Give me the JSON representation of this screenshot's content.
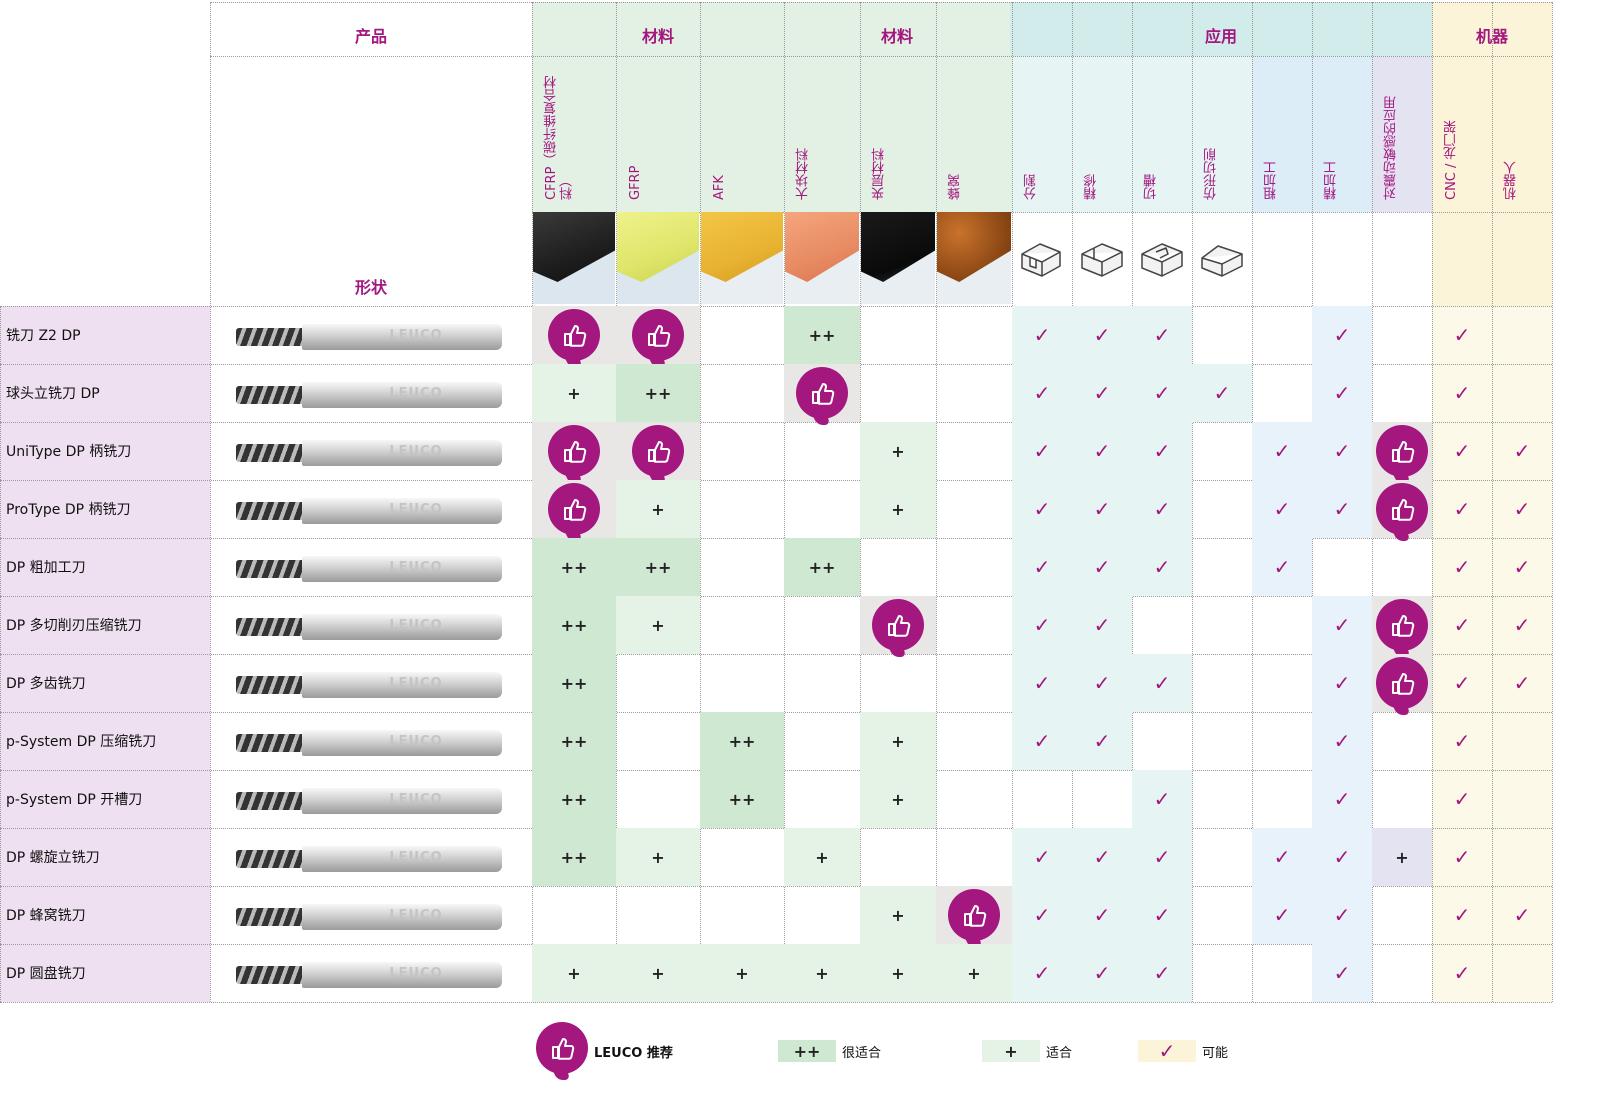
{
  "colors": {
    "accent": "#a3177f",
    "product_bg": "#eee0f0",
    "strong_green": "#cfe8d2",
    "light_green": "#e4f3e6",
    "header_material": "#e2f1e4",
    "header_application": "#d2eceb",
    "header_machine": "#fbf4d8",
    "blue_col": "#dcedf8",
    "lilac_col": "#e4e3f2"
  },
  "header": {
    "product": "产品",
    "shape": "形状",
    "materials_1": "材料",
    "materials_2": "材料",
    "application": "应用",
    "machine": "机器"
  },
  "columns": [
    "CFRP（碳纤维复合材料）",
    "GFRP",
    "AFK",
    "大块材料",
    "夹层材料",
    "蜂窝",
    "分割",
    "精修",
    "切槽",
    "仿形切削",
    "粗加工",
    "精加工",
    "对震动敏感的应用",
    "CNC / 龙门架",
    "机器人"
  ],
  "rows": [
    {
      "label": "铣刀 Z2 DP",
      "cells": [
        "T",
        "T",
        "",
        "++",
        "",
        "",
        "V",
        "V",
        "V",
        "",
        "",
        "V",
        "",
        "V",
        ""
      ]
    },
    {
      "label": "球头立铣刀 DP",
      "cells": [
        "+",
        "++",
        "",
        "T",
        "",
        "",
        "V",
        "V",
        "V",
        "V",
        "",
        "V",
        "",
        "V",
        ""
      ]
    },
    {
      "label": "UniType DP 柄铣刀",
      "cells": [
        "T",
        "T",
        "",
        "",
        "+",
        "",
        "V",
        "V",
        "V",
        "",
        "V",
        "V",
        "T",
        "V",
        "V"
      ]
    },
    {
      "label": "ProType DP 柄铣刀",
      "cells": [
        "T",
        "+",
        "",
        "",
        "+",
        "",
        "V",
        "V",
        "V",
        "",
        "V",
        "V",
        "T",
        "V",
        "V"
      ]
    },
    {
      "label": "DP 粗加工刀",
      "cells": [
        "++",
        "++",
        "",
        "++",
        "",
        "",
        "V",
        "V",
        "V",
        "",
        "V",
        "",
        "",
        "V",
        "V"
      ]
    },
    {
      "label": "DP 多切削刃压缩铣刀",
      "cells": [
        "++",
        "+",
        "",
        "",
        "T",
        "",
        "V",
        "V",
        "",
        "",
        "",
        "V",
        "T",
        "V",
        "V"
      ]
    },
    {
      "label": "DP 多齿铣刀",
      "cells": [
        "++",
        "",
        "",
        "",
        "",
        "",
        "V",
        "V",
        "V",
        "",
        "",
        "V",
        "T",
        "V",
        "V"
      ]
    },
    {
      "label": "p-System DP 压缩铣刀",
      "cells": [
        "++",
        "",
        "++",
        "",
        "+",
        "",
        "V",
        "V",
        "",
        "",
        "",
        "V",
        "",
        "V",
        ""
      ]
    },
    {
      "label": "p-System DP 开槽刀",
      "cells": [
        "++",
        "",
        "++",
        "",
        "+",
        "",
        "",
        "",
        "V",
        "",
        "",
        "V",
        "",
        "V",
        ""
      ]
    },
    {
      "label": "DP 螺旋立铣刀",
      "cells": [
        "++",
        "+",
        "",
        "+",
        "",
        "",
        "V",
        "V",
        "V",
        "",
        "V",
        "V",
        "+",
        "V",
        ""
      ]
    },
    {
      "label": "DP 蜂窝铣刀",
      "cells": [
        "",
        "",
        "",
        "",
        "+",
        "T",
        "V",
        "V",
        "V",
        "",
        "V",
        "V",
        "",
        "V",
        "V"
      ]
    },
    {
      "label": "DP 圆盘铣刀",
      "cells": [
        "+",
        "+",
        "+",
        "+",
        "+",
        "+",
        "V",
        "V",
        "V",
        "",
        "",
        "V",
        "",
        "V",
        ""
      ]
    }
  ],
  "symbols": {
    "plus": "+",
    "plusplus": "++",
    "check": "✓"
  },
  "logo_text": "LEUCO",
  "icons": {
    "recommend": "thumbs-up-icon",
    "possible": "checkmark-icon"
  },
  "legend": {
    "recommend": "LEUCO 推荐",
    "very_suitable_symbol": "++",
    "very_suitable": "很适合",
    "suitable_symbol": "+",
    "suitable": "适合",
    "possible_symbol": "✓",
    "possible": "可能"
  }
}
